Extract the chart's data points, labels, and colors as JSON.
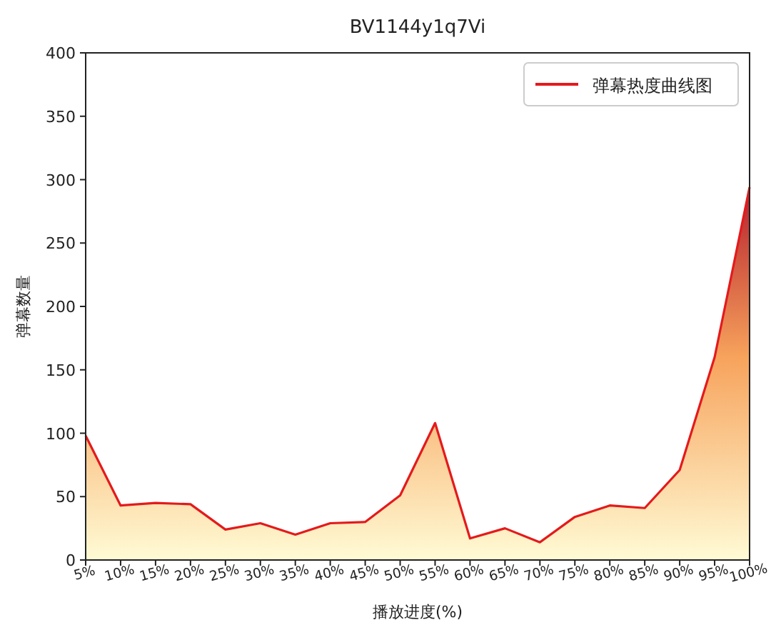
{
  "chart_data": {
    "type": "area",
    "title": "BV1144y1q7Vi",
    "xlabel": "播放进度(%)",
    "ylabel": "弹幕数量",
    "categories": [
      "5%",
      "10%",
      "15%",
      "20%",
      "25%",
      "30%",
      "35%",
      "40%",
      "45%",
      "50%",
      "55%",
      "60%",
      "65%",
      "70%",
      "75%",
      "80%",
      "85%",
      "90%",
      "95%",
      "100%"
    ],
    "series": [
      {
        "name": "弹幕热度曲线图",
        "color": "#e41a1c",
        "values": [
          98,
          43,
          45,
          44,
          24,
          29,
          20,
          29,
          30,
          51,
          108,
          17,
          25,
          14,
          34,
          43,
          41,
          71,
          160,
          294
        ]
      }
    ],
    "ylim": [
      0,
      400
    ],
    "yticks": [
      0,
      50,
      100,
      150,
      200,
      250,
      300,
      350,
      400
    ],
    "grid": false,
    "legend": "top right"
  }
}
